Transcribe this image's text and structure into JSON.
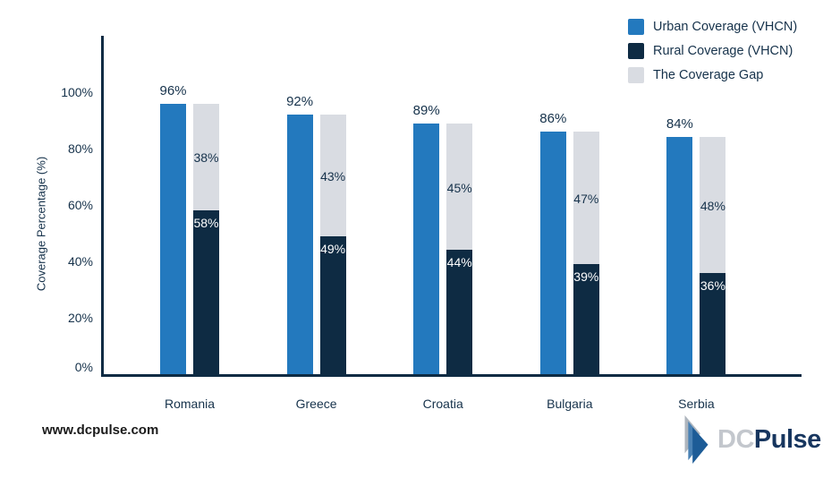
{
  "chart_data": {
    "type": "bar",
    "title": "",
    "categories": [
      "Romania",
      "Greece",
      "Croatia",
      "Bulgaria",
      "Serbia"
    ],
    "series": [
      {
        "name": "Urban Coverage (VHCN)",
        "values": [
          96,
          92,
          89,
          86,
          84
        ],
        "color": "#2379BE",
        "stacked": false,
        "label_position": "above",
        "label_color": "#16324B"
      },
      {
        "name": "Rural Coverage (VHCN)",
        "values": [
          58,
          49,
          44,
          39,
          36
        ],
        "color": "#0E2B43",
        "stacked": true,
        "label_position": "inside-top",
        "label_color": "#FFFFFF"
      },
      {
        "name": "The Coverage Gap",
        "values": [
          38,
          43,
          45,
          47,
          48
        ],
        "color": "#D9DCE2",
        "stacked": true,
        "label_position": "inside-center",
        "label_color": "#16324B"
      }
    ],
    "value_label_suffix": "%",
    "xlabel": "",
    "ylabel": "Coverage Percentage (%)",
    "yticks": [
      {
        "value": 0,
        "label": "0%"
      },
      {
        "value": 20,
        "label": "20%"
      },
      {
        "value": 40,
        "label": "40%"
      },
      {
        "value": 60,
        "label": "60%"
      },
      {
        "value": 80,
        "label": "80%"
      },
      {
        "value": 100,
        "label": "100%"
      }
    ],
    "ylim": [
      0,
      120
    ],
    "grid": false,
    "legend_position": "top-right"
  },
  "colors": {
    "axis": "#0E2B43",
    "text": "#16324B",
    "background": "#FFFFFF"
  },
  "footer": {
    "website": "www.dcpulse.com"
  },
  "logo": {
    "prefix": "DC",
    "suffix": "Pulse",
    "prefix_color": "#C3C7CD",
    "suffix_color": "#17365F",
    "icon_colors": [
      "#AEB5BD",
      "#4A82B5",
      "#1D5C97"
    ]
  }
}
